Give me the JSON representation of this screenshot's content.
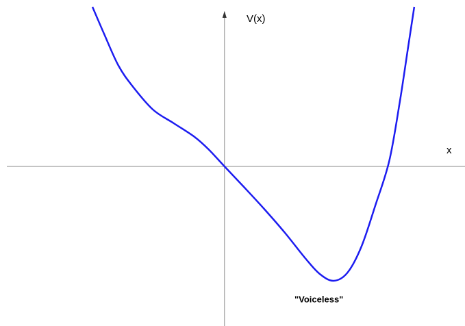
{
  "chart_data": {
    "type": "line",
    "y_label": "V(x)",
    "x_label": "x",
    "annotation": "\"Voiceless\"",
    "x": [
      -1.9,
      -1.73,
      -1.53,
      -1.33,
      -1.03,
      -0.73,
      -0.43,
      -0.23,
      0,
      0.27,
      0.57,
      0.87,
      1.17,
      1.37,
      1.57,
      1.77,
      1.97,
      2.17,
      2.37,
      2.52,
      2.64,
      2.73
    ],
    "series": [
      {
        "color": "#1c1cf0",
        "values": [
          2.33,
          1.93,
          1.48,
          1.18,
          0.83,
          0.63,
          0.43,
          0.25,
          0,
          -0.29,
          -0.62,
          -0.97,
          -1.35,
          -1.57,
          -1.67,
          -1.55,
          -1.17,
          -0.57,
          0.08,
          0.93,
          1.73,
          2.33
        ]
      }
    ],
    "xlim": [
      -3.23,
      3.46
    ],
    "ylim": [
      -2.33,
      2.43
    ]
  }
}
